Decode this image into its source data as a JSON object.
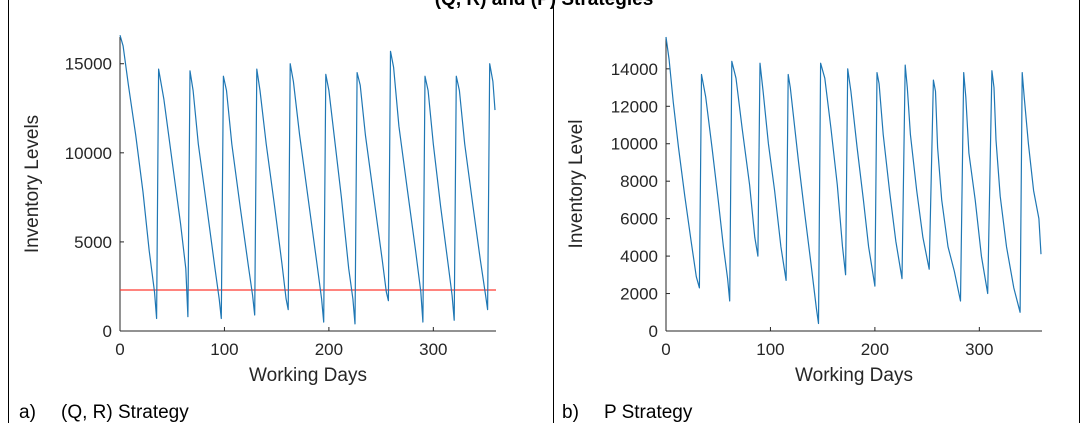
{
  "figure": {
    "title": "(Q, R) and (P) Strategies"
  },
  "panels": [
    {
      "letter": "a)",
      "caption": "(Q, R) Strategy"
    },
    {
      "letter": "b)",
      "caption": "P Strategy"
    }
  ],
  "colors": {
    "line": "#1f77b4",
    "reorder_line": "#ff3b30",
    "axis": "#262626"
  },
  "chart_data": [
    {
      "type": "line",
      "title": "",
      "xlabel": "Working Days",
      "ylabel": "Inventory Levels",
      "xlim": [
        0,
        360
      ],
      "ylim": [
        0,
        16500
      ],
      "xticks": [
        0,
        100,
        200,
        300
      ],
      "yticks": [
        0,
        5000,
        10000,
        15000
      ],
      "grid": false,
      "series": [
        {
          "x": [
            0,
            3,
            8,
            15,
            22,
            28,
            33,
            35,
            37,
            42,
            50,
            58,
            63,
            65,
            67,
            70,
            75,
            83,
            91,
            95,
            97,
            99,
            102,
            107,
            115,
            123,
            127,
            129,
            131,
            134,
            140,
            148,
            155,
            159,
            161,
            163,
            166,
            172,
            180,
            188,
            193,
            195,
            197,
            200,
            205,
            212,
            219,
            223,
            225,
            227,
            230,
            235,
            243,
            251,
            255,
            257,
            259,
            262,
            267,
            275,
            283,
            288,
            290,
            292,
            295,
            300,
            307,
            314,
            318,
            320,
            322,
            325,
            330,
            338,
            345,
            350,
            352,
            354,
            357,
            359
          ],
          "y": [
            16600,
            16000,
            13800,
            11000,
            7800,
            4500,
            2200,
            700,
            14700,
            13000,
            9500,
            6000,
            3500,
            800,
            14600,
            13500,
            10500,
            7000,
            3500,
            1800,
            700,
            14300,
            13500,
            10500,
            7000,
            3600,
            2000,
            900,
            14700,
            13500,
            10500,
            7000,
            3800,
            1800,
            1200,
            15000,
            14000,
            11000,
            7500,
            4000,
            1800,
            500,
            14400,
            13500,
            11000,
            7500,
            3500,
            1800,
            400,
            14500,
            13800,
            11000,
            7500,
            4000,
            2200,
            1700,
            15700,
            14800,
            11500,
            8000,
            4500,
            2200,
            500,
            14300,
            13500,
            10500,
            7000,
            3800,
            2000,
            600,
            14300,
            13500,
            10500,
            7000,
            4000,
            2000,
            1200,
            15000,
            14000,
            12400
          ]
        }
      ],
      "reference_line": {
        "y": 2300
      }
    },
    {
      "type": "line",
      "title": "",
      "xlabel": "Working Days",
      "ylabel": "Inventory Level",
      "xlim": [
        0,
        360
      ],
      "ylim": [
        0,
        15700
      ],
      "xticks": [
        0,
        100,
        200,
        300
      ],
      "yticks": [
        0,
        2000,
        4000,
        6000,
        8000,
        10000,
        12000,
        14000
      ],
      "grid": false,
      "series": [
        {
          "x": [
            0,
            3,
            7,
            12,
            18,
            24,
            29,
            32,
            34,
            38,
            44,
            50,
            55,
            59,
            61,
            63,
            67,
            73,
            80,
            85,
            88,
            90,
            93,
            98,
            104,
            110,
            115,
            117,
            119,
            122,
            127,
            133,
            139,
            144,
            146,
            148,
            152,
            158,
            164,
            169,
            172,
            174,
            177,
            183,
            189,
            194,
            200,
            202,
            204,
            208,
            214,
            220,
            226,
            229,
            231,
            234,
            240,
            246,
            252,
            256,
            258,
            260,
            264,
            270,
            276,
            282,
            285,
            287,
            290,
            296,
            302,
            308,
            312,
            314,
            316,
            320,
            326,
            333,
            339,
            341,
            343,
            347,
            352,
            357,
            359
          ],
          "y": [
            15700,
            14500,
            12200,
            9800,
            7200,
            4800,
            2900,
            2300,
            13700,
            12500,
            9800,
            7000,
            4500,
            2800,
            1600,
            14400,
            13500,
            10800,
            7800,
            5000,
            4000,
            14300,
            12800,
            10000,
            7500,
            4500,
            2700,
            13700,
            13000,
            11500,
            9000,
            6200,
            3500,
            1200,
            400,
            14300,
            13500,
            10800,
            7800,
            4500,
            3000,
            14000,
            12800,
            9800,
            7000,
            4500,
            2400,
            13800,
            13200,
            10500,
            7500,
            4800,
            2800,
            14200,
            13000,
            10500,
            7500,
            5000,
            3300,
            13400,
            12800,
            9800,
            7000,
            4500,
            3200,
            1600,
            13800,
            12500,
            9500,
            7000,
            4000,
            2000,
            13900,
            13000,
            10200,
            7200,
            4500,
            2300,
            1000,
            13800,
            12500,
            10000,
            7500,
            6000,
            4100
          ]
        }
      ]
    }
  ]
}
